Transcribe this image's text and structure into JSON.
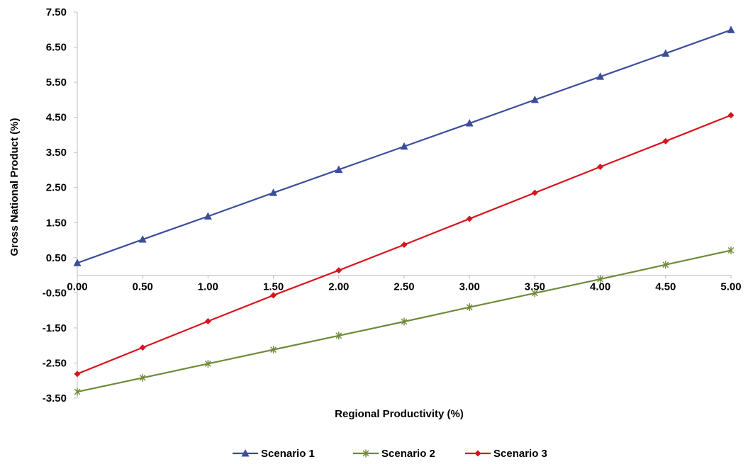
{
  "chart_data": {
    "type": "line",
    "title": "",
    "xlabel": "Regional Productivity (%)",
    "ylabel": "Gross National Product (%)",
    "x": [
      0.0,
      0.5,
      1.0,
      1.5,
      2.0,
      2.5,
      3.0,
      3.5,
      4.0,
      4.5,
      5.0
    ],
    "x_tick_labels": [
      "0.00",
      "0.50",
      "1.00",
      "1.50",
      "2.00",
      "2.50",
      "3.00",
      "3.50",
      "4.00",
      "4.50",
      "5.00"
    ],
    "y_ticks": [
      7.5,
      6.5,
      5.5,
      4.5,
      3.5,
      2.5,
      1.5,
      0.5,
      -0.5,
      -1.5,
      -2.5,
      -3.5
    ],
    "y_tick_labels": [
      "7.50",
      "6.50",
      "5.50",
      "4.50",
      "3.50",
      "2.50",
      "1.50",
      "0.50",
      "-0.50",
      "-1.50",
      "-2.50",
      "-3.50"
    ],
    "xlim": [
      0,
      5
    ],
    "ylim": [
      -3.5,
      7.5
    ],
    "grid": false,
    "legend_position": "bottom",
    "series": [
      {
        "name": "Scenario 1",
        "color": "#3B4E9A",
        "marker": "triangle",
        "values": [
          0.35,
          1.02,
          1.68,
          2.35,
          3.01,
          3.67,
          4.33,
          5.0,
          5.66,
          6.32,
          6.99
        ]
      },
      {
        "name": "Scenario 2",
        "color": "#6E8B3A",
        "marker": "asterisk",
        "values": [
          -3.32,
          -2.92,
          -2.52,
          -2.12,
          -1.72,
          -1.32,
          -0.91,
          -0.51,
          -0.11,
          0.3,
          0.71
        ]
      },
      {
        "name": "Scenario 3",
        "color": "#D7141B",
        "marker": "diamond",
        "values": [
          -2.81,
          -2.06,
          -1.31,
          -0.57,
          0.14,
          0.87,
          1.61,
          2.35,
          3.09,
          3.82,
          4.56
        ]
      }
    ]
  }
}
